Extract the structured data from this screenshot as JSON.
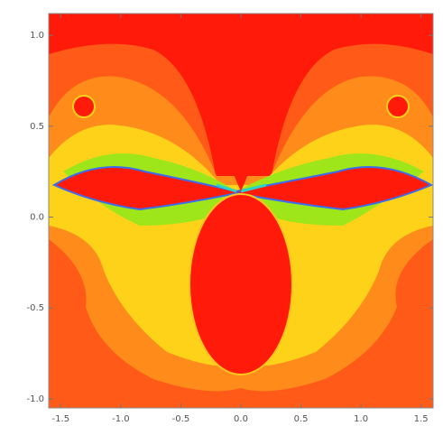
{
  "chart_data": {
    "type": "density",
    "xlim": [
      -1.6,
      1.6
    ],
    "ylim": [
      -1.05,
      1.12
    ],
    "xticks": [
      -1.5,
      {
        "value": -1,
        "label": "-1.0"
      },
      -0.5,
      {
        "value": 0,
        "label": "0.0"
      },
      0.5,
      {
        "value": 1,
        "label": "1.0"
      },
      1.5
    ],
    "yticks": [
      {
        "value": -1,
        "label": "-1.0"
      },
      -0.5,
      {
        "value": 0,
        "label": "0.0"
      },
      0.5,
      {
        "value": 1,
        "label": "1.0"
      }
    ]
  }
}
